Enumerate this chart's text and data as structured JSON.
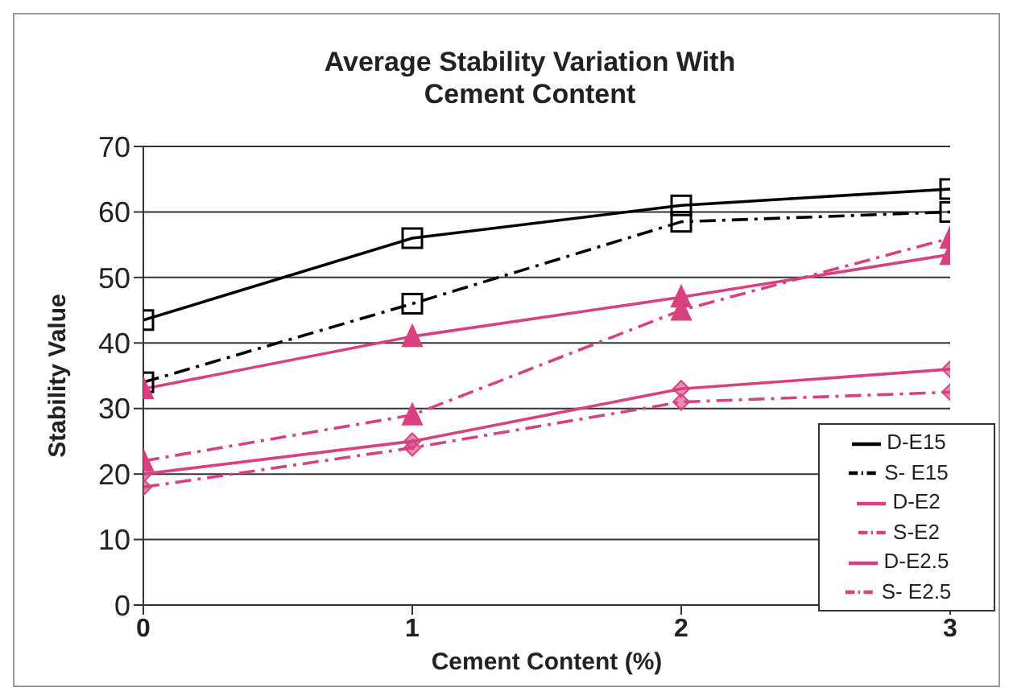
{
  "chart_data": {
    "type": "line",
    "title": "Average Stability Variation With Cement Content",
    "xlabel": "Cement Content (%)",
    "ylabel": "Stability Value",
    "x": [
      0,
      1,
      2,
      3
    ],
    "xlim": [
      0,
      3
    ],
    "xticks": [
      0,
      1,
      2,
      3
    ],
    "ylim": [
      0,
      70
    ],
    "yticks": [
      0,
      10,
      20,
      30,
      40,
      50,
      60,
      70
    ],
    "grid": "y",
    "legend": "bottom right",
    "series": [
      {
        "name": "D-E15",
        "color": "#000000",
        "marker": "square",
        "line_style": "solid",
        "values": [
          43.5,
          56,
          61,
          63.5
        ]
      },
      {
        "name": "S- E15",
        "color": "#000000",
        "marker": "square",
        "line_style": "dashed",
        "values": [
          34,
          46,
          58.5,
          60
        ]
      },
      {
        "name": "D-E2",
        "color": "#d9407f",
        "marker": "triangle",
        "line_style": "solid",
        "values": [
          33,
          41,
          47,
          53.5
        ]
      },
      {
        "name": "S-E2",
        "color": "#d9407f",
        "marker": "triangle",
        "line_style": "dashed",
        "values": [
          22,
          29,
          45,
          56
        ]
      },
      {
        "name": "D-E2.5",
        "color": "#d9407f",
        "marker": "diamond",
        "line_style": "solid",
        "values": [
          20,
          25,
          33,
          36
        ]
      },
      {
        "name": "S- E2.5",
        "color": "#d9407f",
        "marker": "diamond",
        "line_style": "dashed",
        "values": [
          18,
          24,
          31,
          32.5
        ]
      }
    ]
  }
}
